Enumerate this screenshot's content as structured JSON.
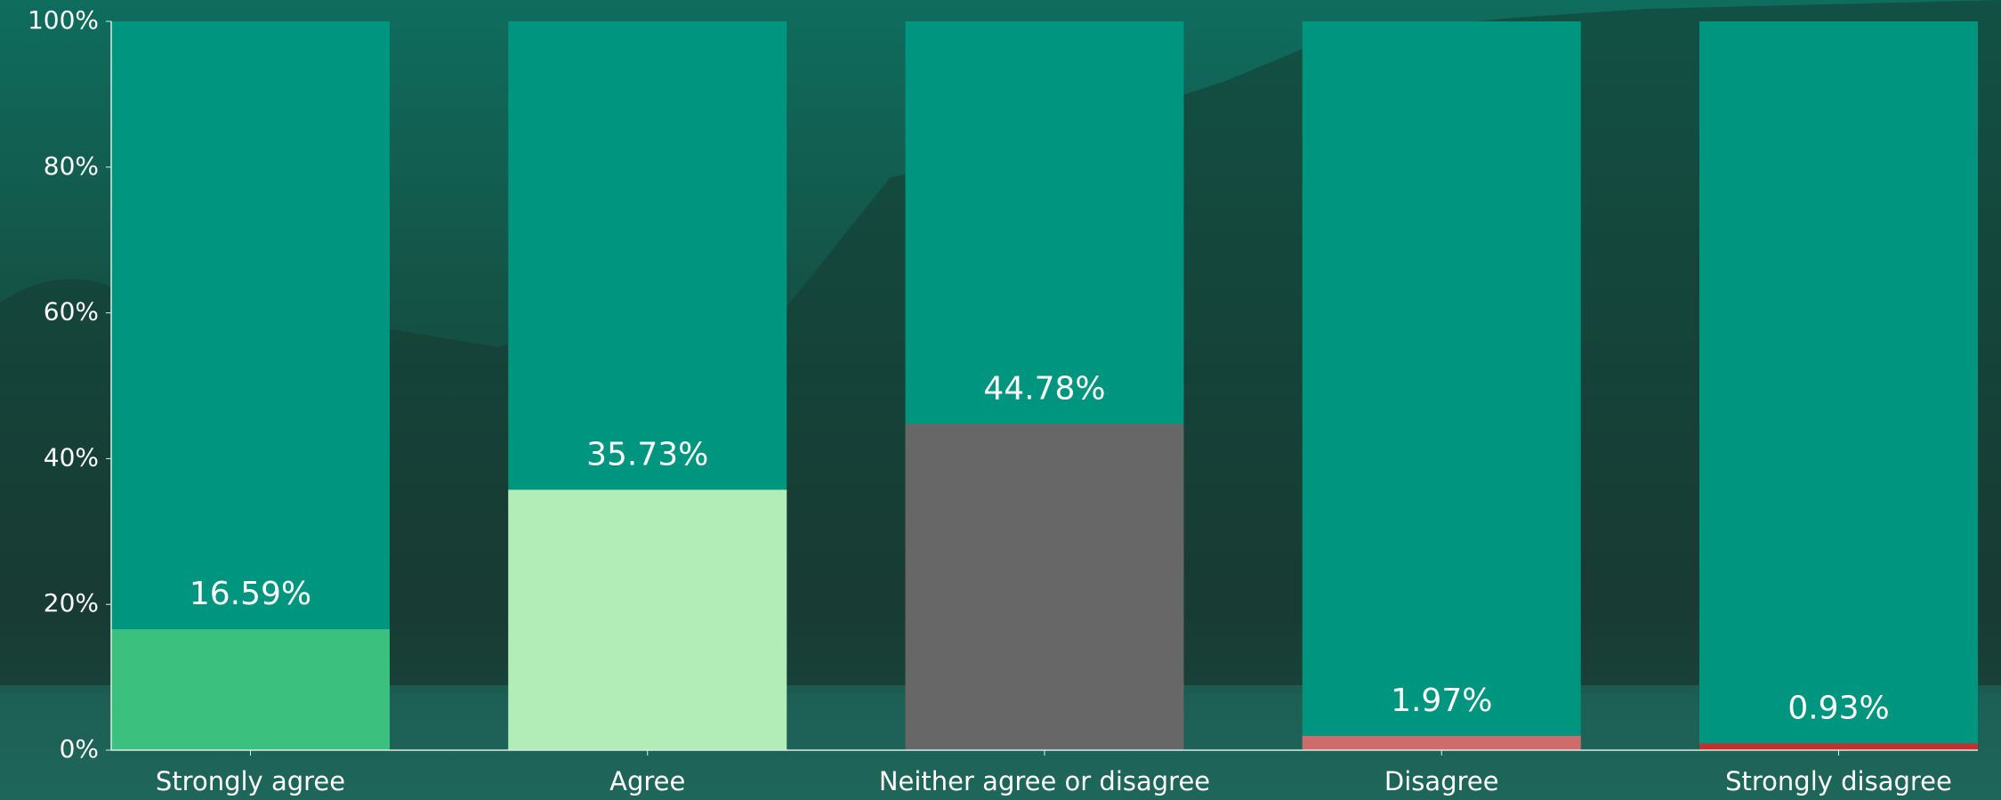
{
  "chart_data": {
    "type": "bar",
    "categories": [
      "Strongly agree",
      "Agree",
      "Neither agree or disagree",
      "Disagree",
      "Strongly disagree"
    ],
    "values": [
      16.59,
      35.73,
      44.78,
      1.97,
      0.93
    ],
    "value_labels": [
      "16.59%",
      "35.73%",
      "44.78%",
      "1.97%",
      "0.93%"
    ],
    "colors": [
      "#3cc07e",
      "#b2ecb7",
      "#676767",
      "#d06b6b",
      "#c3302f"
    ],
    "ylim": [
      0,
      100
    ],
    "yticks": [
      {
        "value": 0,
        "label": "0%"
      },
      {
        "value": 20,
        "label": "20%"
      },
      {
        "value": 40,
        "label": "40%"
      },
      {
        "value": 60,
        "label": "60%"
      },
      {
        "value": 80,
        "label": "80%"
      },
      {
        "value": 100,
        "label": "100%"
      }
    ]
  }
}
